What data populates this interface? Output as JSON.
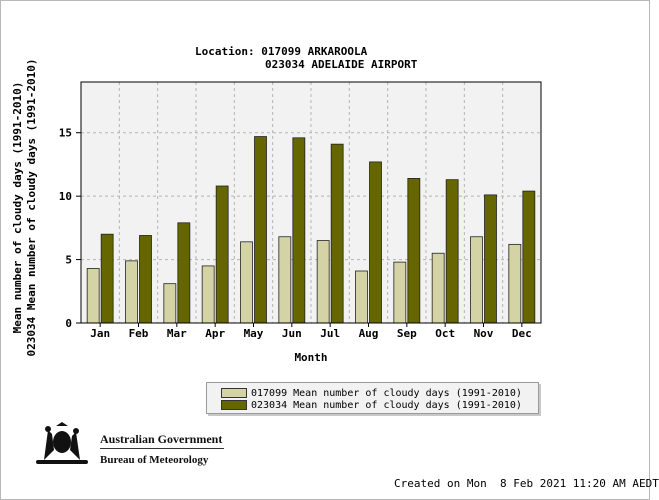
{
  "title": {
    "line1": "Location: 017099 ARKAROOLA",
    "line2": "023034 ADELAIDE AIRPORT"
  },
  "footer": {
    "created": "Created on Mon  8 Feb 2021 11:20 AM AEDT",
    "logo_line1": "Australian Government",
    "logo_line2": "Bureau of Meteorology"
  },
  "colors": {
    "series1": "#d4d3a6",
    "series2": "#666600",
    "plot_bg": "#f2f2f2",
    "grid": "#b4b4b4"
  },
  "chart_data": {
    "type": "bar",
    "categories": [
      "Jan",
      "Feb",
      "Mar",
      "Apr",
      "May",
      "Jun",
      "Jul",
      "Aug",
      "Sep",
      "Oct",
      "Nov",
      "Dec"
    ],
    "series": [
      {
        "name": "017099 Mean number of cloudy days (1991-2010)",
        "values": [
          4.3,
          4.9,
          3.1,
          4.5,
          6.4,
          6.8,
          6.5,
          4.1,
          4.8,
          5.5,
          6.8,
          6.2
        ]
      },
      {
        "name": "023034 Mean number of cloudy days (1991-2010)",
        "values": [
          7.0,
          6.9,
          7.9,
          10.8,
          14.7,
          14.6,
          14.1,
          12.7,
          11.4,
          11.3,
          10.1,
          10.4
        ]
      }
    ],
    "xlabel": "Month",
    "ylabel_1": "Mean number of cloudy days (1991-2010)",
    "ylabel_2": "023034 Mean number of cloudy days (1991-2010)",
    "yticks": [
      0,
      5,
      10,
      15
    ],
    "ylim": [
      0,
      19
    ],
    "grid": true,
    "legend_position": "bottom"
  }
}
